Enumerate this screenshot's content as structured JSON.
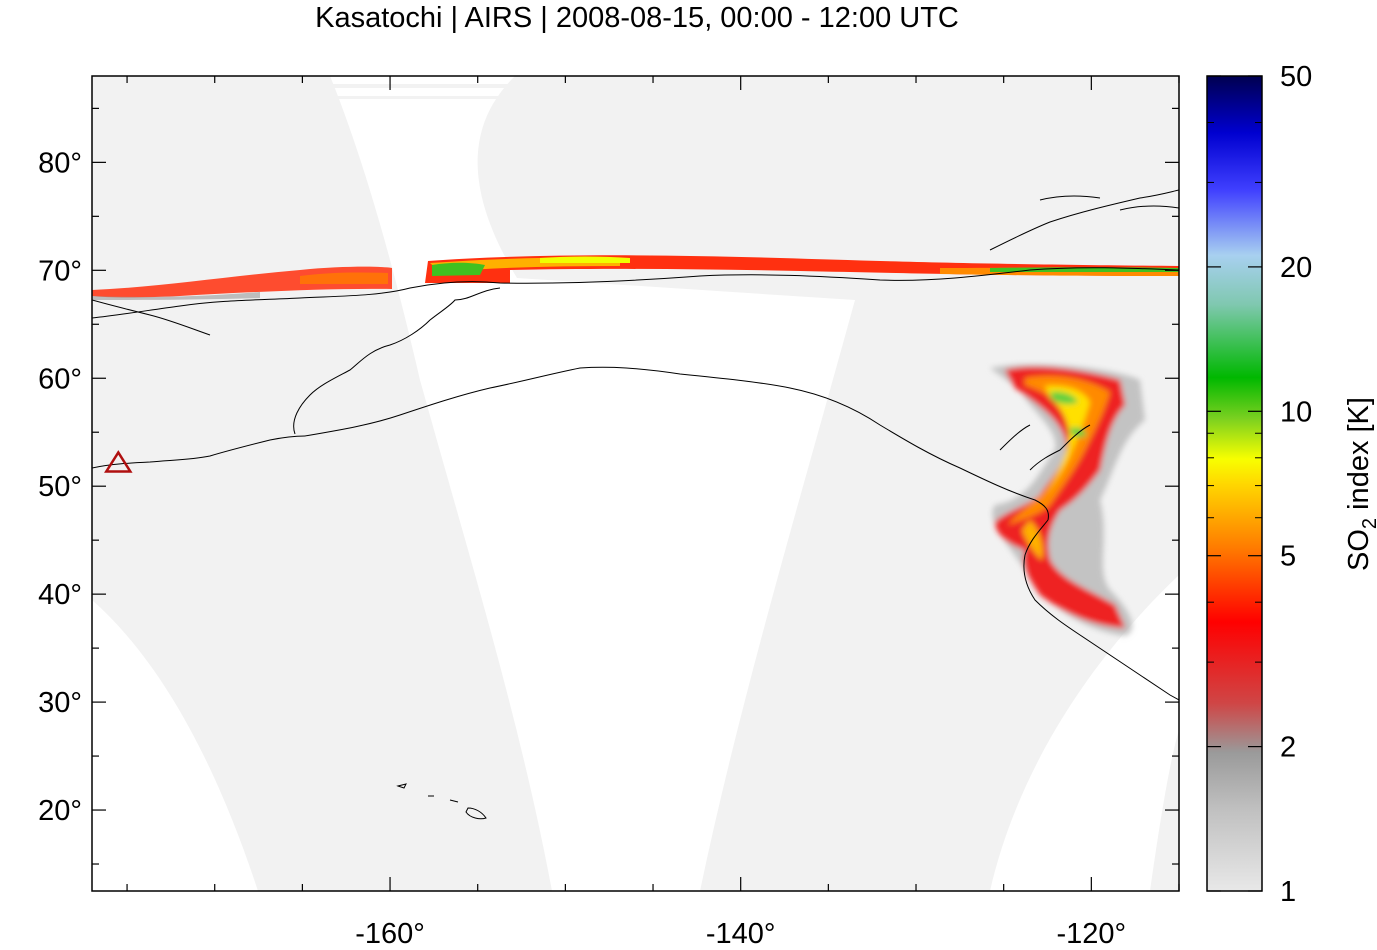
{
  "map": {
    "title": "Kasatochi | AIRS | 2008-08-15, 00:00 - 12:00 UTC",
    "lon_range": [
      -177,
      -115
    ],
    "lat_range": [
      12.5,
      88
    ],
    "lat_ticks": [
      {
        "value": 20,
        "label": "20°"
      },
      {
        "value": 30,
        "label": "30°"
      },
      {
        "value": 40,
        "label": "40°"
      },
      {
        "value": 50,
        "label": "50°"
      },
      {
        "value": 60,
        "label": "60°"
      },
      {
        "value": 70,
        "label": "70°"
      },
      {
        "value": 80,
        "label": "80°"
      }
    ],
    "lon_ticks": [
      {
        "value": -160,
        "label": "-160°"
      },
      {
        "value": -140,
        "label": "-140°"
      },
      {
        "value": -120,
        "label": "-120°"
      }
    ],
    "volcano": {
      "name_icon": "triangle-volcano-marker",
      "lon": -175.5,
      "lat": 52.2,
      "color": "#b01010"
    },
    "swath_color": "#f2f2f2"
  },
  "colorbar": {
    "label_main": "SO",
    "label_sub": "2",
    "label_rest": " index [K]",
    "scale": "log",
    "range": [
      1,
      50
    ],
    "ticks": [
      {
        "value": 1,
        "label": "1"
      },
      {
        "value": 2,
        "label": "2"
      },
      {
        "value": 5,
        "label": "5"
      },
      {
        "value": 10,
        "label": "10"
      },
      {
        "value": 20,
        "label": "20"
      },
      {
        "value": 50,
        "label": "50"
      }
    ],
    "stops": [
      "#e8e8e8",
      "#9a9a9a",
      "#cf4646",
      "#ff0000",
      "#ff7a00",
      "#ffd800",
      "#f8ff00",
      "#40c020",
      "#00b800",
      "#80c8b0",
      "#a8d0f0",
      "#4040ff",
      "#0000d0",
      "#000050"
    ]
  }
}
